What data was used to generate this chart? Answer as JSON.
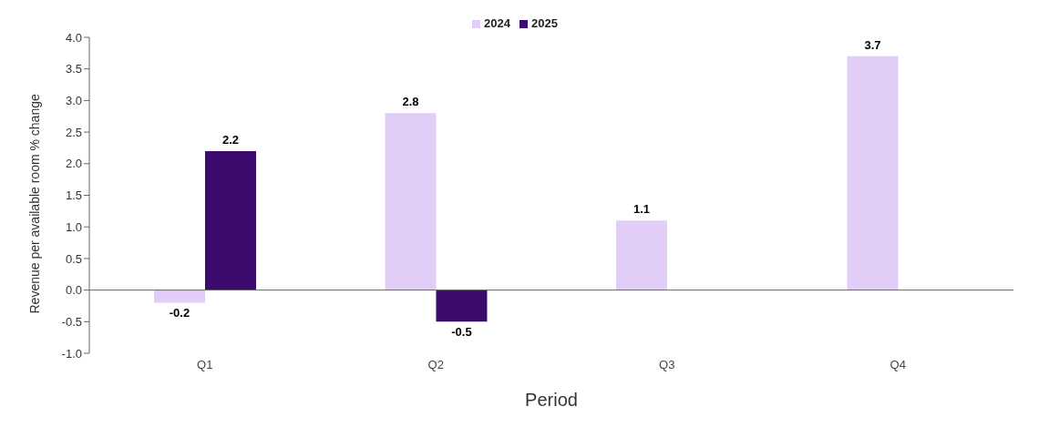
{
  "chart_data": {
    "type": "bar",
    "xlabel": "Period",
    "ylabel": "Revenue per available room % change",
    "categories": [
      "Q1",
      "Q2",
      "Q3",
      "Q4"
    ],
    "series": [
      {
        "name": "2024",
        "color": "#e2cdf8",
        "values": [
          -0.2,
          2.8,
          1.1,
          3.7
        ]
      },
      {
        "name": "2025",
        "color": "#3b0b6e",
        "values": [
          2.2,
          -0.5,
          null,
          null
        ]
      }
    ],
    "ylim": [
      -1,
      4
    ],
    "yticks": [
      {
        "value": -1,
        "label": "-1.0"
      },
      {
        "value": -0.5,
        "label": "-0.5"
      },
      {
        "value": 0,
        "label": "0.0"
      },
      {
        "value": 0.5,
        "label": "0.5"
      },
      {
        "value": 1,
        "label": "1.0"
      },
      {
        "value": 1.5,
        "label": "1.5"
      },
      {
        "value": 2,
        "label": "2.0"
      },
      {
        "value": 2.5,
        "label": "2.5"
      },
      {
        "value": 3,
        "label": "3.0"
      },
      {
        "value": 3.5,
        "label": "3.5"
      },
      {
        "value": 4,
        "label": "4.0"
      }
    ],
    "data_labels": true,
    "legend": "top"
  }
}
